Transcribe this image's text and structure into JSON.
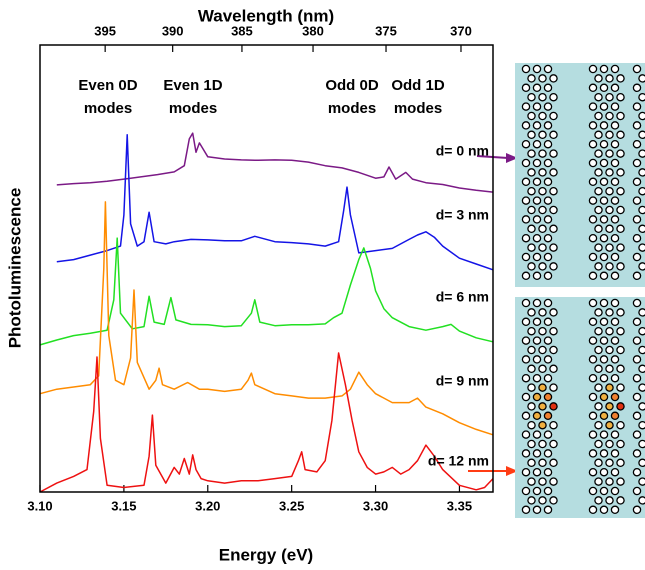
{
  "chart_data": {
    "type": "line",
    "xlabel": "Energy (eV)",
    "x2label": "Wavelength (nm)",
    "ylabel": "Photoluminescence",
    "xlim": [
      3.1,
      3.37
    ],
    "xticks": [
      {
        "value": 3.1,
        "label": "3.10"
      },
      3.15,
      {
        "value": 3.2,
        "label": "3.20"
      },
      3.25,
      {
        "value": 3.3,
        "label": "3.30"
      },
      3.35
    ],
    "x2ticks": [
      395,
      390,
      385,
      380,
      375,
      370
    ],
    "ylim": [
      0,
      10
    ],
    "annotations": [
      [
        "Even 0D",
        "modes"
      ],
      [
        "Even 1D",
        "modes"
      ],
      [
        "Odd 0D",
        "modes"
      ],
      [
        "Odd 1D",
        "modes"
      ]
    ],
    "series": [
      {
        "name": "d= 0 nm",
        "color": "#7b1a86",
        "x": [
          3.11,
          3.12,
          3.13,
          3.14,
          3.15,
          3.16,
          3.17,
          3.18,
          3.186,
          3.189,
          3.191,
          3.193,
          3.195,
          3.2,
          3.21,
          3.22,
          3.23,
          3.24,
          3.25,
          3.26,
          3.27,
          3.28,
          3.29,
          3.3,
          3.305,
          3.308,
          3.312,
          3.318,
          3.322,
          3.33,
          3.34,
          3.35,
          3.36,
          3.37
        ],
        "values": [
          6.87,
          6.9,
          6.92,
          6.95,
          7.0,
          7.05,
          7.1,
          7.16,
          7.3,
          7.9,
          8.03,
          7.6,
          7.81,
          7.5,
          7.45,
          7.43,
          7.42,
          7.43,
          7.42,
          7.38,
          7.3,
          7.25,
          7.15,
          7.02,
          7.05,
          7.27,
          7.0,
          7.15,
          7.0,
          6.92,
          6.88,
          6.8,
          6.75,
          6.71
        ]
      },
      {
        "name": "d= 3 nm",
        "color": "#1414e6",
        "x": [
          3.11,
          3.12,
          3.13,
          3.14,
          3.148,
          3.15,
          3.152,
          3.154,
          3.158,
          3.162,
          3.165,
          3.168,
          3.175,
          3.18,
          3.19,
          3.2,
          3.21,
          3.22,
          3.228,
          3.24,
          3.25,
          3.26,
          3.27,
          3.278,
          3.281,
          3.283,
          3.285,
          3.29,
          3.3,
          3.31,
          3.32,
          3.325,
          3.33,
          3.335,
          3.34,
          3.35,
          3.36,
          3.37
        ],
        "values": [
          5.15,
          5.2,
          5.3,
          5.4,
          5.5,
          6.2,
          7.99,
          6.0,
          5.5,
          5.6,
          6.26,
          5.6,
          5.55,
          5.6,
          5.65,
          5.64,
          5.62,
          5.62,
          5.72,
          5.6,
          5.58,
          5.55,
          5.5,
          5.6,
          6.3,
          6.82,
          6.2,
          5.35,
          5.4,
          5.45,
          5.65,
          5.75,
          5.82,
          5.7,
          5.5,
          5.23,
          5.1,
          4.97
        ]
      },
      {
        "name": "d= 6 nm",
        "color": "#22e022",
        "x": [
          3.1,
          3.11,
          3.12,
          3.13,
          3.14,
          3.144,
          3.146,
          3.148,
          3.155,
          3.162,
          3.165,
          3.168,
          3.174,
          3.178,
          3.181,
          3.19,
          3.2,
          3.21,
          3.22,
          3.226,
          3.228,
          3.231,
          3.24,
          3.25,
          3.26,
          3.27,
          3.275,
          3.28,
          3.285,
          3.29,
          3.293,
          3.297,
          3.3,
          3.305,
          3.31,
          3.32,
          3.33,
          3.34,
          3.345,
          3.35,
          3.36,
          3.37
        ],
        "values": [
          3.29,
          3.4,
          3.5,
          3.55,
          3.62,
          4.3,
          5.68,
          4.0,
          3.65,
          3.7,
          4.38,
          3.8,
          3.75,
          4.35,
          3.85,
          3.75,
          3.74,
          3.7,
          3.72,
          4.0,
          4.3,
          3.8,
          3.72,
          3.74,
          3.74,
          3.76,
          3.9,
          4.0,
          4.63,
          5.2,
          5.46,
          5.0,
          4.5,
          4.1,
          3.9,
          3.7,
          3.62,
          3.7,
          3.75,
          3.6,
          3.45,
          3.36
        ]
      },
      {
        "name": "d= 9 nm",
        "color": "#ff8c00",
        "x": [
          3.1,
          3.11,
          3.12,
          3.13,
          3.135,
          3.138,
          3.139,
          3.141,
          3.145,
          3.15,
          3.154,
          3.156,
          3.158,
          3.165,
          3.169,
          3.171,
          3.173,
          3.18,
          3.188,
          3.195,
          3.2,
          3.21,
          3.22,
          3.224,
          3.226,
          3.228,
          3.24,
          3.25,
          3.26,
          3.27,
          3.28,
          3.285,
          3.29,
          3.295,
          3.3,
          3.31,
          3.32,
          3.325,
          3.33,
          3.34,
          3.35,
          3.36,
          3.37
        ],
        "values": [
          2.2,
          2.3,
          2.35,
          2.4,
          2.6,
          5.0,
          6.49,
          3.5,
          2.5,
          2.4,
          3.0,
          4.52,
          2.9,
          2.3,
          2.5,
          2.77,
          2.4,
          2.3,
          2.45,
          2.3,
          2.3,
          2.25,
          2.3,
          2.5,
          2.66,
          2.4,
          2.2,
          2.15,
          2.1,
          2.1,
          2.15,
          2.3,
          2.68,
          2.4,
          2.2,
          2.0,
          2.0,
          2.1,
          1.9,
          1.75,
          1.55,
          1.4,
          1.28
        ]
      },
      {
        "name": "d= 12 nm",
        "color": "#ee1111",
        "x": [
          3.1,
          3.11,
          3.12,
          3.128,
          3.132,
          3.134,
          3.136,
          3.14,
          3.15,
          3.162,
          3.165,
          3.167,
          3.169,
          3.175,
          3.18,
          3.183,
          3.186,
          3.189,
          3.191,
          3.193,
          3.196,
          3.2,
          3.21,
          3.22,
          3.23,
          3.24,
          3.25,
          3.254,
          3.256,
          3.258,
          3.265,
          3.27,
          3.274,
          3.278,
          3.282,
          3.286,
          3.29,
          3.295,
          3.3,
          3.305,
          3.31,
          3.315,
          3.32,
          3.325,
          3.33,
          3.335,
          3.34,
          3.35,
          3.36,
          3.365,
          3.37
        ],
        "values": [
          0.0,
          0.2,
          0.35,
          0.5,
          1.8,
          3.02,
          1.2,
          0.15,
          0.1,
          0.15,
          0.8,
          1.72,
          0.6,
          0.2,
          0.55,
          0.4,
          0.75,
          0.4,
          0.83,
          0.5,
          0.3,
          0.25,
          0.2,
          0.25,
          0.25,
          0.3,
          0.35,
          0.7,
          0.9,
          0.5,
          0.45,
          0.7,
          1.6,
          3.11,
          2.4,
          1.6,
          0.9,
          0.55,
          0.4,
          0.45,
          0.55,
          0.4,
          0.5,
          0.7,
          1.05,
          0.8,
          0.5,
          0.15,
          0.05,
          0.1,
          0.3
        ]
      }
    ]
  }
}
